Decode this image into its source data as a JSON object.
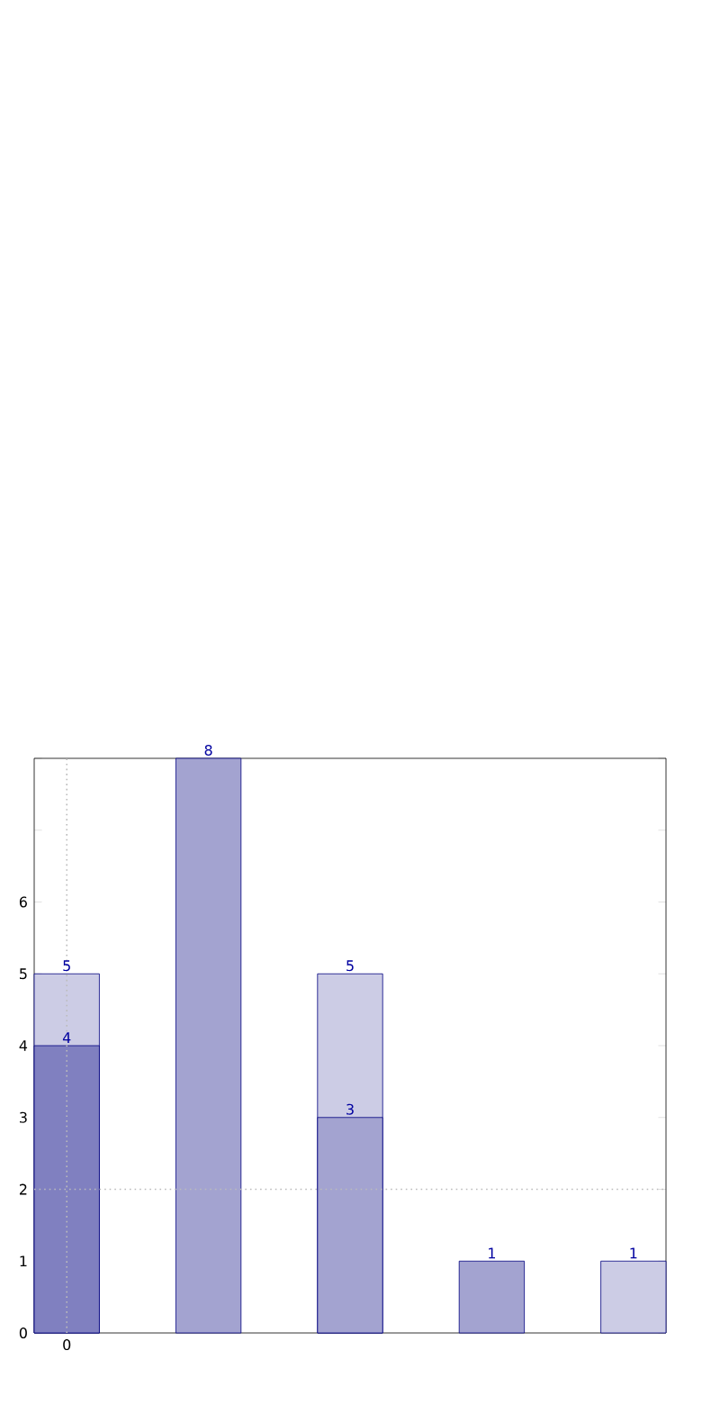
{
  "chart_data": {
    "type": "bar",
    "categories": [
      "0",
      null,
      null,
      null,
      null
    ],
    "series": [
      {
        "color": "#cccce5",
        "values": [
          5,
          null,
          5,
          null,
          1
        ]
      },
      {
        "color": "#a3a3d0",
        "values": [
          null,
          8,
          3,
          1,
          null
        ]
      },
      {
        "color": "#8080c0",
        "values": [
          4,
          null,
          null,
          null,
          null
        ]
      }
    ],
    "ylim": [
      0,
      8
    ],
    "yticks": [
      0,
      1,
      2,
      3,
      4,
      5,
      6,
      {
        "value": 7,
        "label": null
      },
      {
        "value": 8,
        "label": null
      }
    ],
    "data_labels": true,
    "grid": false,
    "legend": false,
    "ref_lines": [
      {
        "axis": "x",
        "value": "0",
        "color": "#bbbbbb",
        "line_style": "dotted"
      },
      {
        "axis": "y",
        "value": 2,
        "color": "#bbbbbb",
        "line_style": "dotted"
      }
    ]
  }
}
